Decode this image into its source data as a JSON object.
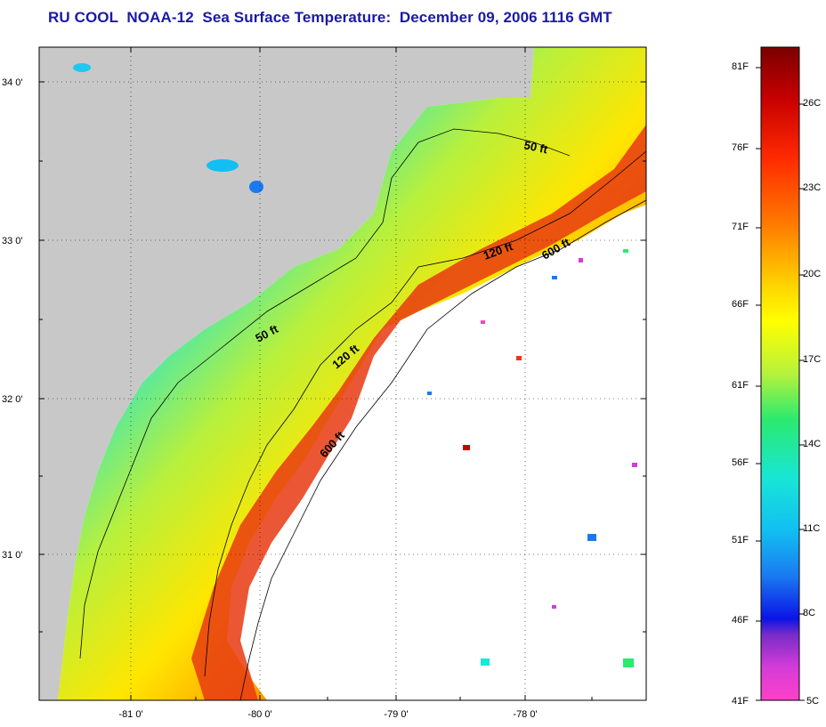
{
  "title": "RU COOL  NOAA-12  Sea Surface Temperature:  December 09, 2006 1116 GMT",
  "map": {
    "lat_labels": [
      "34 0'",
      "33 0'",
      "32 0'",
      "31 0'"
    ],
    "lon_labels": [
      "-81 0'",
      "-80 0'",
      "-79 0'",
      "-78 0'"
    ],
    "contour_labels": [
      "50 ft",
      "120 ft",
      "600 ft",
      "50 ft",
      "120 ft",
      "600 ft"
    ],
    "colors": {
      "land": "#c8c8c8",
      "cloud": "#ffffff",
      "warm": "#e83a12",
      "cool": "#1fc8f0"
    }
  },
  "colorbar": {
    "fahrenheit": [
      "81F",
      "76F",
      "71F",
      "66F",
      "61F",
      "56F",
      "51F",
      "46F",
      "41F"
    ],
    "celsius": [
      "26C",
      "23C",
      "20C",
      "17C",
      "14C",
      "11C",
      "8C",
      "5C"
    ],
    "stops": [
      "#7a0000",
      "#c80000",
      "#ff2a00",
      "#ff7a00",
      "#ffd800",
      "#ffff00",
      "#b6f23c",
      "#2bea6e",
      "#18e6d6",
      "#12bff2",
      "#1a7af0",
      "#0a14e6",
      "#7a2cc8",
      "#d43cd8",
      "#ff40c8"
    ]
  }
}
